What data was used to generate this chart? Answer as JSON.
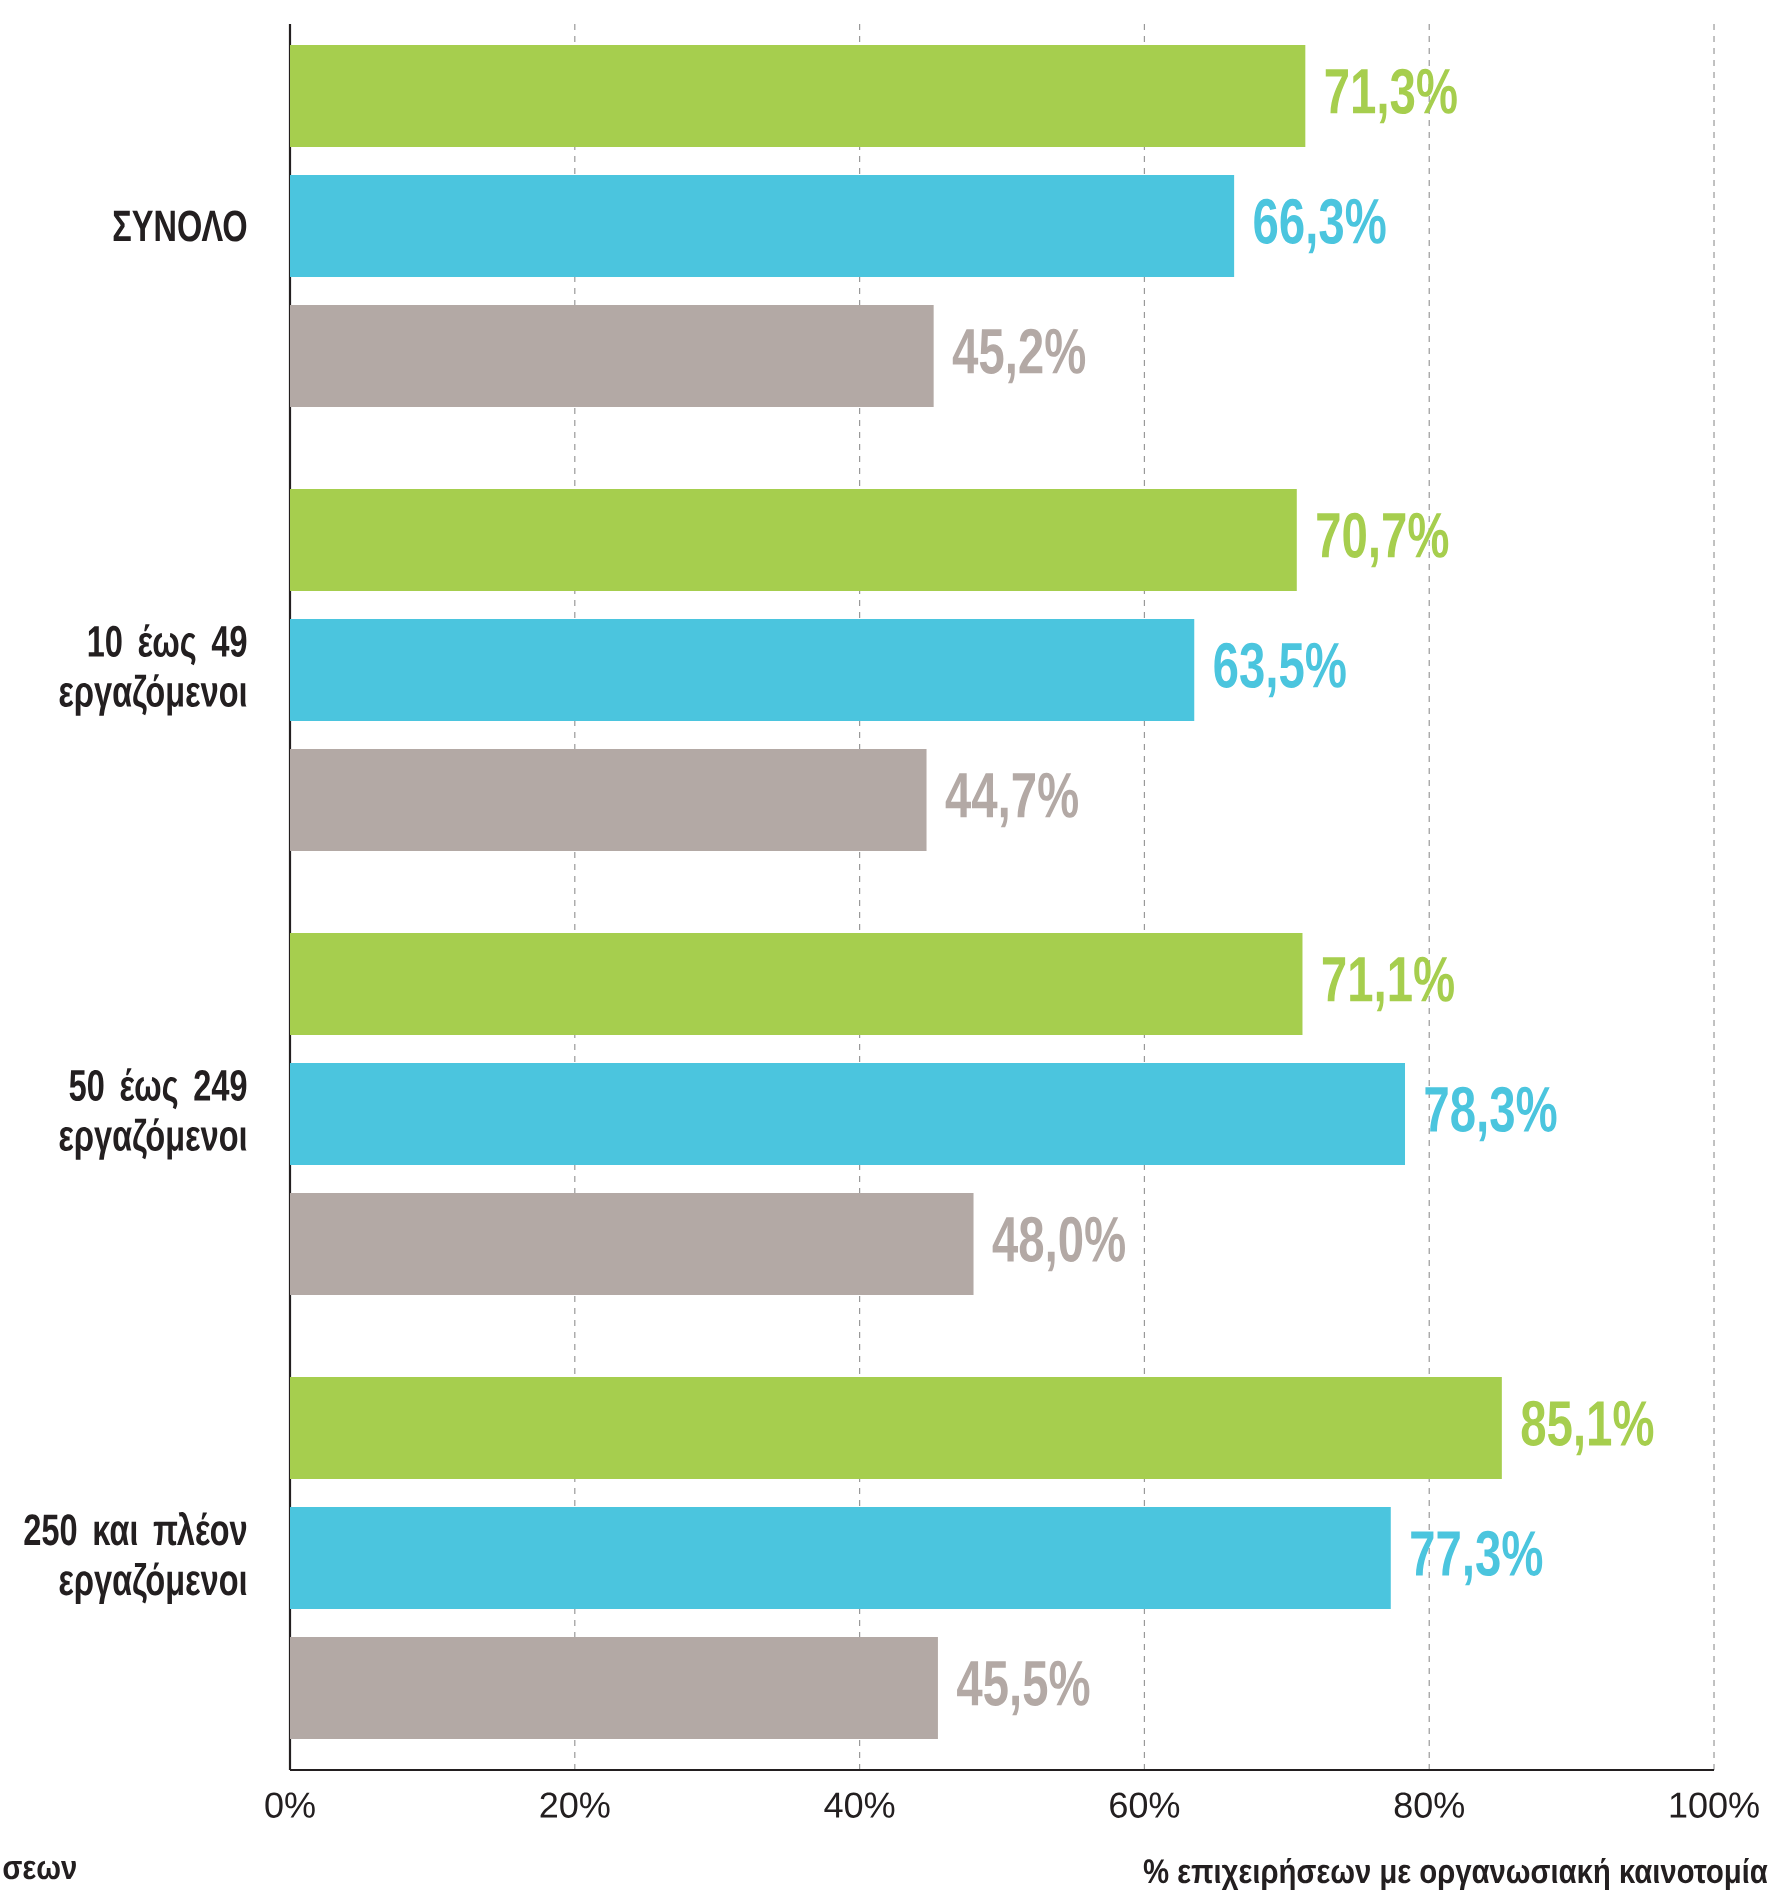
{
  "chart_data": {
    "type": "bar",
    "orientation": "horizontal",
    "xlabel": "% επιχειρήσεων με οργανωσιακή καινοτομία",
    "annotations": [
      "σεων"
    ],
    "categories": [
      "ΣΥΝΟΛΟ",
      "10 έως 49 εργαζόμενοι",
      "50 έως 249 εργαζόμενοι",
      "250 και πλέον εργαζόμενοι"
    ],
    "series": [
      {
        "color": "#a6ce4e",
        "values": [
          71.3,
          70.7,
          71.1,
          85.1
        ],
        "value_labels": [
          "71,3%",
          "70,7%",
          "71,1%",
          "85,1%"
        ]
      },
      {
        "color": "#4bc5de",
        "values": [
          66.3,
          63.5,
          78.3,
          77.3
        ],
        "value_labels": [
          "66,3%",
          "63,5%",
          "78,3%",
          "77,3%"
        ]
      },
      {
        "color": "#b3a9a5",
        "values": [
          45.2,
          44.7,
          48.0,
          45.5
        ],
        "value_labels": [
          "45,2%",
          "44,7%",
          "48,0%",
          "45,5%"
        ]
      }
    ],
    "xlim": [
      0,
      100
    ],
    "xticks": [
      {
        "value": 0,
        "label": "0%"
      },
      {
        "value": 20,
        "label": "20%"
      },
      {
        "value": 40,
        "label": "40%"
      },
      {
        "value": 60,
        "label": "60%"
      },
      {
        "value": 80,
        "label": "80%"
      },
      {
        "value": 100,
        "label": "100%"
      }
    ],
    "grid": "x"
  }
}
